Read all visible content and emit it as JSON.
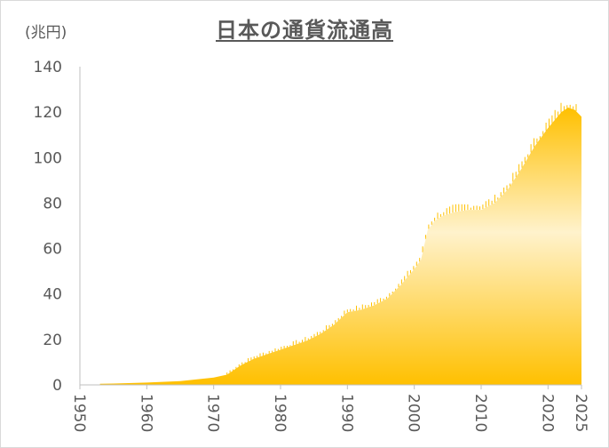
{
  "chart_data": {
    "type": "area",
    "title": "日本の通貨流通高",
    "ylabel": "(兆円)",
    "xlabel": "",
    "ylim": [
      0,
      140
    ],
    "xlim": [
      1950,
      2025
    ],
    "yticks": [
      "0",
      "20",
      "40",
      "60",
      "80",
      "100",
      "120",
      "140"
    ],
    "xticks": [
      "1950",
      "1960",
      "1970",
      "1980",
      "1990",
      "2000",
      "2010",
      "2020",
      "2025"
    ],
    "grid": false,
    "legend": "none",
    "colors": {
      "area": "#ffc000",
      "area_light": "#fff2cc",
      "spikes": "#ffc000",
      "axis": "#bfbfbf"
    },
    "series": [
      {
        "x": [
          1953,
          1955,
          1960,
          1965,
          1970,
          1972,
          1974,
          1976,
          1978,
          1980,
          1982,
          1984,
          1986,
          1988,
          1990,
          1992,
          1994,
          1996,
          1998,
          2000,
          2001,
          2002,
          2003,
          2004,
          2006,
          2008,
          2010,
          2012,
          2014,
          2016,
          2018,
          2020,
          2022,
          2023,
          2024,
          2025
        ],
        "values": [
          0.5,
          0.6,
          1.0,
          1.7,
          3.2,
          4.5,
          8.5,
          11.5,
          13.5,
          15.5,
          17.5,
          19.5,
          22.5,
          26.5,
          32.0,
          33.0,
          35.0,
          38.0,
          44.0,
          51.0,
          55.0,
          68.0,
          72.0,
          74.0,
          76.0,
          77.0,
          77.0,
          80.0,
          86.0,
          95.0,
          105.0,
          113.0,
          120.0,
          122.0,
          121.0,
          118.0
        ]
      }
    ]
  }
}
